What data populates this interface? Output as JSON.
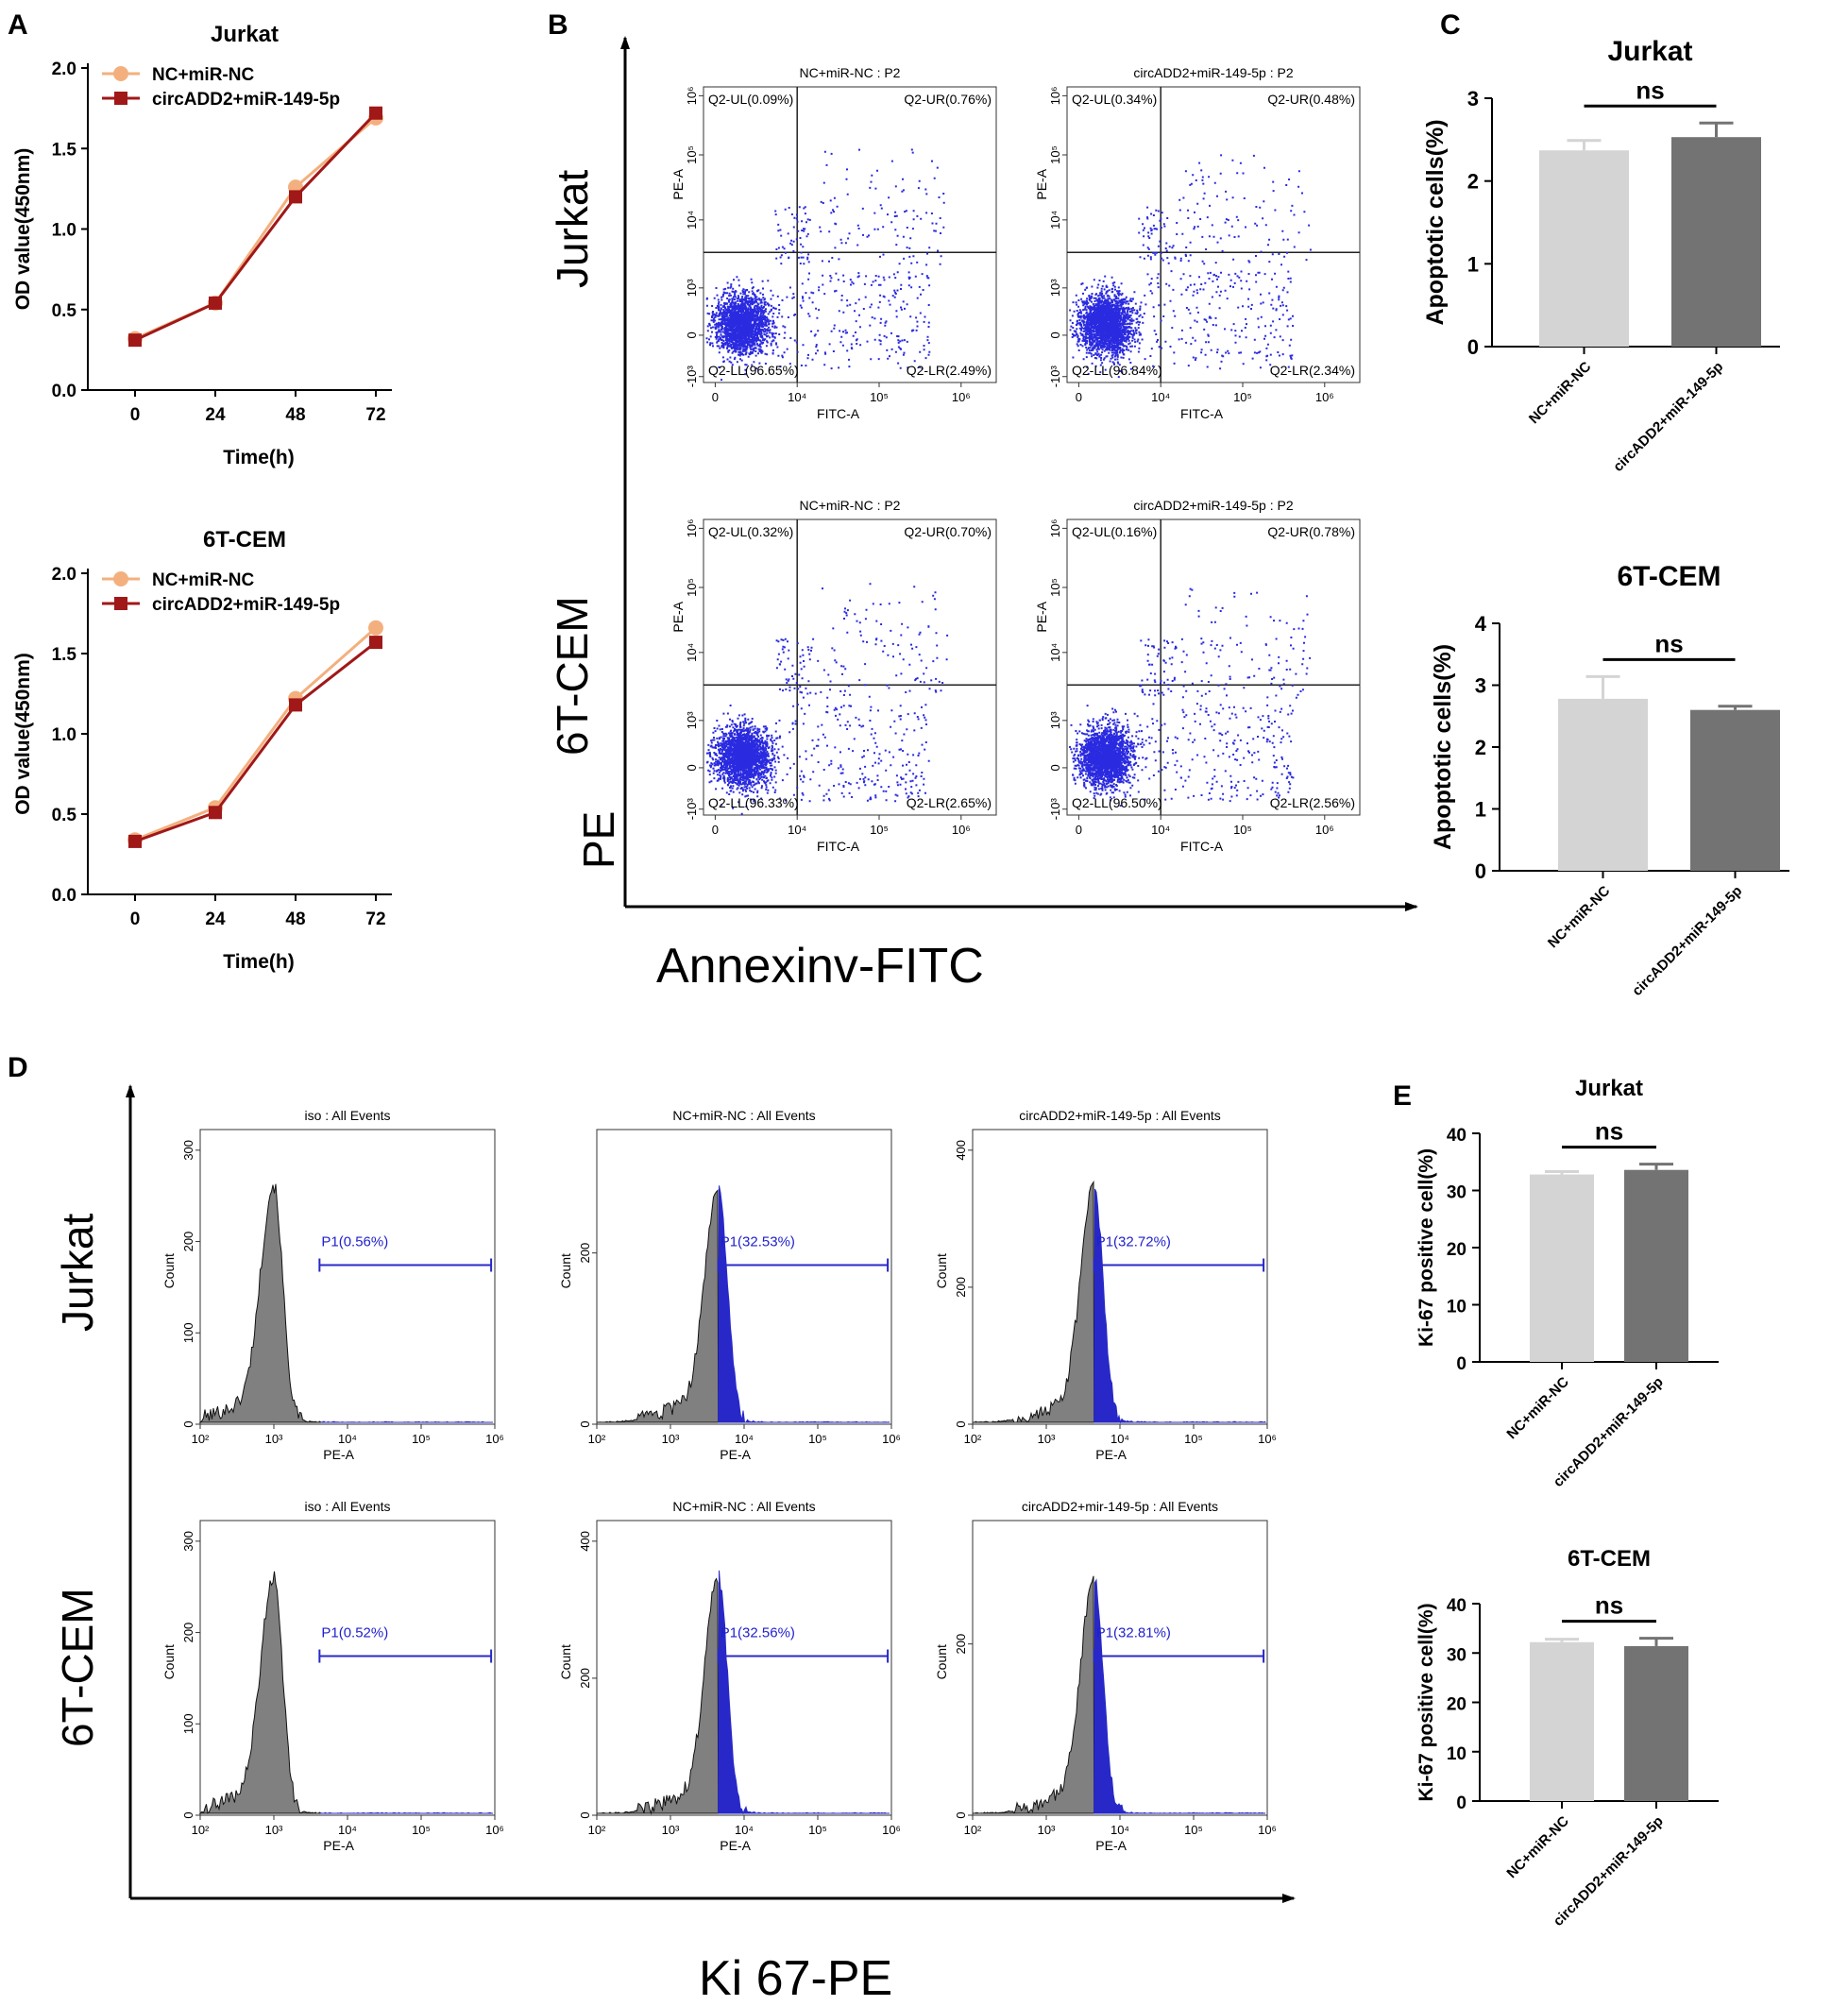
{
  "panel_labels": [
    "A",
    "B",
    "C",
    "D",
    "E"
  ],
  "colors": {
    "nc": "#f3b07e",
    "circ": "#a01818",
    "bar_light": "#d4d4d4",
    "bar_dark": "#737373",
    "dots": "#2a2ae0",
    "hist_grey": "#808080",
    "hist_blue": "#2828c8"
  },
  "chart_data": [
    {
      "id": "A-jurkat",
      "type": "line",
      "title": "Jurkat",
      "xlabel": "Time(h)",
      "ylabel": "OD value(450nm)",
      "x": [
        0,
        24,
        48,
        72
      ],
      "x_ticks": [
        "0",
        "24",
        "48",
        "72"
      ],
      "ylim": [
        0,
        2.0
      ],
      "y_ticks": [
        "0.0",
        "0.5",
        "1.0",
        "1.5",
        "2.0"
      ],
      "series": [
        {
          "name": "NC+miR-NC",
          "values": [
            0.32,
            0.54,
            1.26,
            1.69
          ]
        },
        {
          "name": "circADD2+miR-149-5p",
          "values": [
            0.31,
            0.54,
            1.2,
            1.72
          ]
        }
      ]
    },
    {
      "id": "A-6tcem",
      "type": "line",
      "title": "6T-CEM",
      "xlabel": "Time(h)",
      "ylabel": "OD value(450nm)",
      "x": [
        0,
        24,
        48,
        72
      ],
      "x_ticks": [
        "0",
        "24",
        "48",
        "72"
      ],
      "ylim": [
        0,
        2.0
      ],
      "y_ticks": [
        "0.0",
        "0.5",
        "1.0",
        "1.5",
        "2.0"
      ],
      "series": [
        {
          "name": "NC+miR-NC",
          "values": [
            0.34,
            0.54,
            1.22,
            1.66
          ]
        },
        {
          "name": "circADD2+miR-149-5p",
          "values": [
            0.33,
            0.51,
            1.18,
            1.57
          ]
        }
      ]
    },
    {
      "id": "C-jurkat",
      "type": "bar",
      "title": "Jurkat",
      "ylabel": "Apoptotic cells(%)",
      "categories": [
        "NC+miR-NC",
        "circADD2+miR-149-5p"
      ],
      "values": [
        2.37,
        2.53
      ],
      "errors": [
        0.12,
        0.17
      ],
      "ylim": [
        0,
        3
      ],
      "y_ticks": [
        "0",
        "1",
        "2",
        "3"
      ],
      "annotation": "ns"
    },
    {
      "id": "C-6tcem",
      "type": "bar",
      "title": "6T-CEM",
      "ylabel": "Apoptotic cells(%)",
      "categories": [
        "NC+miR-NC",
        "circADD2+miR-149-5p"
      ],
      "values": [
        2.78,
        2.6
      ],
      "errors": [
        0.36,
        0.06
      ],
      "ylim": [
        0,
        4
      ],
      "y_ticks": [
        "0",
        "1",
        "2",
        "3",
        "4"
      ],
      "annotation": "ns"
    },
    {
      "id": "E-jurkat",
      "type": "bar",
      "title": "Jurkat",
      "ylabel": "Ki-67 positive cell(%)",
      "categories": [
        "NC+miR-NC",
        "circADD2+miR-149-5p"
      ],
      "values": [
        32.8,
        33.6
      ],
      "errors": [
        0.5,
        1.0
      ],
      "ylim": [
        0,
        40
      ],
      "y_ticks": [
        "0",
        "10",
        "20",
        "30",
        "40"
      ],
      "annotation": "ns"
    },
    {
      "id": "E-6tcem",
      "type": "bar",
      "title": "6T-CEM",
      "ylabel": "Ki-67 positive cell(%)",
      "categories": [
        "NC+miR-NC",
        "circADD2+miR-149-5p"
      ],
      "values": [
        32.2,
        31.4
      ],
      "errors": [
        0.6,
        1.6
      ],
      "ylim": [
        0,
        40
      ],
      "y_ticks": [
        "0",
        "10",
        "20",
        "30",
        "40"
      ],
      "annotation": "ns"
    }
  ],
  "flow_B": {
    "y_axis_label": "PE",
    "x_axis_label": "Annexinv-FITC",
    "row_labels": [
      "Jurkat",
      "6T-CEM"
    ],
    "x_label": "FITC-A",
    "y_label": "PE-A",
    "x_ticks": [
      "0",
      "10⁴",
      "10⁵",
      "10⁶"
    ],
    "y_ticks": [
      "-10³",
      "0",
      "10³",
      "10⁴",
      "10⁵",
      "10⁶"
    ],
    "plots": [
      {
        "title": "NC+miR-NC : P2",
        "UL": "Q2-UL(0.09%)",
        "UR": "Q2-UR(0.76%)",
        "LL": "Q2-LL(96.65%)",
        "LR": "Q2-LR(2.49%)"
      },
      {
        "title": "circADD2+miR-149-5p : P2",
        "UL": "Q2-UL(0.34%)",
        "UR": "Q2-UR(0.48%)",
        "LL": "Q2-LL(96.84%)",
        "LR": "Q2-LR(2.34%)"
      },
      {
        "title": "NC+miR-NC : P2",
        "UL": "Q2-UL(0.32%)",
        "UR": "Q2-UR(0.70%)",
        "LL": "Q2-LL(96.33%)",
        "LR": "Q2-LR(2.65%)"
      },
      {
        "title": "circADD2+miR-149-5p : P2",
        "UL": "Q2-UL(0.16%)",
        "UR": "Q2-UR(0.78%)",
        "LL": "Q2-LL(96.50%)",
        "LR": "Q2-LR(2.56%)"
      }
    ]
  },
  "hist_D": {
    "x_axis_label": "Ki 67-PE",
    "row_labels": [
      "Jurkat",
      "6T-CEM"
    ],
    "x_label": "PE-A",
    "y_label": "Count",
    "x_ticks": [
      "10²",
      "10³",
      "10⁴",
      "10⁵",
      "10⁶"
    ],
    "plots": [
      {
        "title": "iso : All Events",
        "gate": "P1(0.56%)",
        "y_ticks": [
          "0",
          "100",
          "200",
          "300"
        ],
        "peak_log": 3.0,
        "fill_blue": false
      },
      {
        "title": "NC+miR-NC : All Events",
        "gate": "P1(32.53%)",
        "y_ticks": [
          "0",
          "200"
        ],
        "peak_log": 3.65,
        "fill_blue": true
      },
      {
        "title": "circADD2+miR-149-5p : All Events",
        "gate": "P1(32.72%)",
        "y_ticks": [
          "0",
          "200",
          "400"
        ],
        "peak_log": 3.65,
        "fill_blue": true
      },
      {
        "title": "iso : All Events",
        "gate": "P1(0.52%)",
        "y_ticks": [
          "0",
          "100",
          "200",
          "300"
        ],
        "peak_log": 3.0,
        "fill_blue": false
      },
      {
        "title": "NC+miR-NC : All Events",
        "gate": "P1(32.56%)",
        "y_ticks": [
          "0",
          "200",
          "400"
        ],
        "peak_log": 3.65,
        "fill_blue": true
      },
      {
        "title": "circADD2+mir-149-5p : All Events",
        "gate": "P1(32.81%)",
        "y_ticks": [
          "0",
          "200"
        ],
        "peak_log": 3.65,
        "fill_blue": true
      }
    ]
  }
}
